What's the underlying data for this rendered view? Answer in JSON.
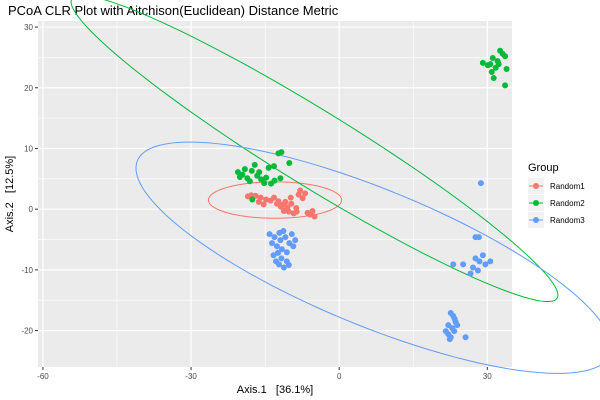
{
  "chart_data": {
    "type": "scatter",
    "title": "PCoA CLR Plot with Aitchison(Euclidean) Distance Metric",
    "xlabel": "Axis.1   [36.1%]",
    "ylabel": "Axis.2   [12.5%]",
    "xlim": [
      -61,
      35
    ],
    "ylim": [
      -26,
      31
    ],
    "x_ticks": [
      -60,
      -30,
      0,
      30
    ],
    "x_tick_labels": [
      "-60",
      "-30",
      "0",
      "30"
    ],
    "y_ticks": [
      -20,
      -10,
      0,
      10,
      20,
      30
    ],
    "y_tick_labels": [
      "-20",
      "-10",
      "0",
      "10",
      "20",
      "30"
    ],
    "grid": true,
    "legend_title": "Group",
    "legend_position": "right",
    "series": [
      {
        "name": "Random1",
        "color": "#F8766D",
        "ellipse": {
          "cx": -13,
          "cy": 1.5,
          "rx": 13.5,
          "ry": 3,
          "angle_deg": 0
        },
        "points": [
          [
            -18.5,
            2.1
          ],
          [
            -17.8,
            2.3
          ],
          [
            -16.9,
            2.2
          ],
          [
            -15.9,
            1.9
          ],
          [
            -14.8,
            1.6
          ],
          [
            -13.9,
            1.4
          ],
          [
            -13.2,
            1.9
          ],
          [
            -12.6,
            0.9
          ],
          [
            -12.3,
            1.3
          ],
          [
            -11.8,
            0.4
          ],
          [
            -11.4,
            0.7
          ],
          [
            -10.9,
            1.2
          ],
          [
            -10.5,
            0.3
          ],
          [
            -10.2,
            -0.4
          ],
          [
            -9.7,
            0.9
          ],
          [
            -9.2,
            -0.7
          ],
          [
            -8.7,
            0.2
          ],
          [
            -8.2,
            2.4
          ],
          [
            -7.9,
            3.1
          ],
          [
            -7.4,
            1.8
          ],
          [
            -6.9,
            2.6
          ],
          [
            -6.4,
            -0.6
          ],
          [
            -5.9,
            -0.9
          ],
          [
            -5.4,
            -0.3
          ],
          [
            -5.0,
            -1.2
          ],
          [
            -16.3,
            1.2
          ],
          [
            -15.3,
            0.8
          ],
          [
            -11.2,
            -0.3
          ],
          [
            -9.8,
            1.9
          ],
          [
            -8.6,
            -0.4
          ]
        ]
      },
      {
        "name": "Random2",
        "color": "#00BA38",
        "ellipse": {
          "cx": -5,
          "cy": 10,
          "rx": 55,
          "ry": 6.5,
          "angle_deg": -26.5
        },
        "points": [
          [
            -20.5,
            6.1
          ],
          [
            -20.1,
            5.3
          ],
          [
            -19.6,
            5.7
          ],
          [
            -19.1,
            6.6
          ],
          [
            -18.6,
            5.1
          ],
          [
            -18.1,
            4.6
          ],
          [
            -17.7,
            6.3
          ],
          [
            -17.1,
            7.3
          ],
          [
            -16.6,
            5.5
          ],
          [
            -16.2,
            6.1
          ],
          [
            -15.8,
            4.9
          ],
          [
            -15.2,
            4.3
          ],
          [
            -14.8,
            5.2
          ],
          [
            -14.3,
            6.8
          ],
          [
            -13.8,
            4.2
          ],
          [
            -13.2,
            7.1
          ],
          [
            -12.3,
            9.2
          ],
          [
            -11.7,
            9.4
          ],
          [
            -11.9,
            5.1
          ],
          [
            -10.1,
            7.6
          ],
          [
            -17.6,
            1.6
          ],
          [
            -13.1,
            4.7
          ],
          [
            29.1,
            24.1
          ],
          [
            30.1,
            23.7
          ],
          [
            30.9,
            22.6
          ],
          [
            31.3,
            21.6
          ],
          [
            31.7,
            23.3
          ],
          [
            32.1,
            24.4
          ],
          [
            32.6,
            26.1
          ],
          [
            33.1,
            25.6
          ],
          [
            33.6,
            25.2
          ],
          [
            33.9,
            23.1
          ],
          [
            33.6,
            20.4
          ],
          [
            31.1,
            24.9
          ],
          [
            32.3,
            23.9
          ],
          [
            30.6,
            23.9
          ]
        ]
      },
      {
        "name": "Random3",
        "color": "#619CFF",
        "ellipse": {
          "cx": 7,
          "cy": -8,
          "rx": 50.5,
          "ry": 11.5,
          "angle_deg": -18
        },
        "points": [
          [
            -14.1,
            -4.1
          ],
          [
            -13.6,
            -5.6
          ],
          [
            -13.1,
            -4.6
          ],
          [
            -12.6,
            -6.1
          ],
          [
            -12.1,
            -3.9
          ],
          [
            -11.6,
            -6.6
          ],
          [
            -11.9,
            -5.1
          ],
          [
            -11.3,
            -3.6
          ],
          [
            -10.9,
            -4.6
          ],
          [
            -10.6,
            -7.1
          ],
          [
            -10.1,
            -5.6
          ],
          [
            -9.6,
            -4.1
          ],
          [
            -9.3,
            -6.1
          ],
          [
            -8.9,
            -5.1
          ],
          [
            -13.3,
            -7.6
          ],
          [
            -12.8,
            -8.6
          ],
          [
            -12.2,
            -9.1
          ],
          [
            -11.7,
            -8.1
          ],
          [
            -11.2,
            -9.6
          ],
          [
            -10.6,
            -8.6
          ],
          [
            -10.2,
            -9.2
          ],
          [
            -12.4,
            -7.2
          ],
          [
            28.7,
            4.3
          ],
          [
            27.6,
            -4.6
          ],
          [
            28.3,
            -4.6
          ],
          [
            29.1,
            -7.6
          ],
          [
            28.4,
            -8.6
          ],
          [
            27.6,
            -8.1
          ],
          [
            29.6,
            -9.1
          ],
          [
            30.6,
            -8.6
          ],
          [
            27.1,
            -9.6
          ],
          [
            25.1,
            -9.1
          ],
          [
            23.1,
            -9.1
          ],
          [
            26.6,
            -10.6
          ],
          [
            28.1,
            -10.1
          ],
          [
            22.6,
            -17.1
          ],
          [
            23.1,
            -17.6
          ],
          [
            23.6,
            -18.6
          ],
          [
            22.9,
            -19.6
          ],
          [
            23.3,
            -20.1
          ],
          [
            22.1,
            -20.6
          ],
          [
            22.6,
            -21.1
          ],
          [
            21.6,
            -20.1
          ],
          [
            23.9,
            -19.1
          ],
          [
            25.6,
            -21.1
          ],
          [
            22.1,
            -19.1
          ],
          [
            23.4,
            -18.1
          ],
          [
            22.4,
            -21.4
          ]
        ]
      }
    ]
  }
}
